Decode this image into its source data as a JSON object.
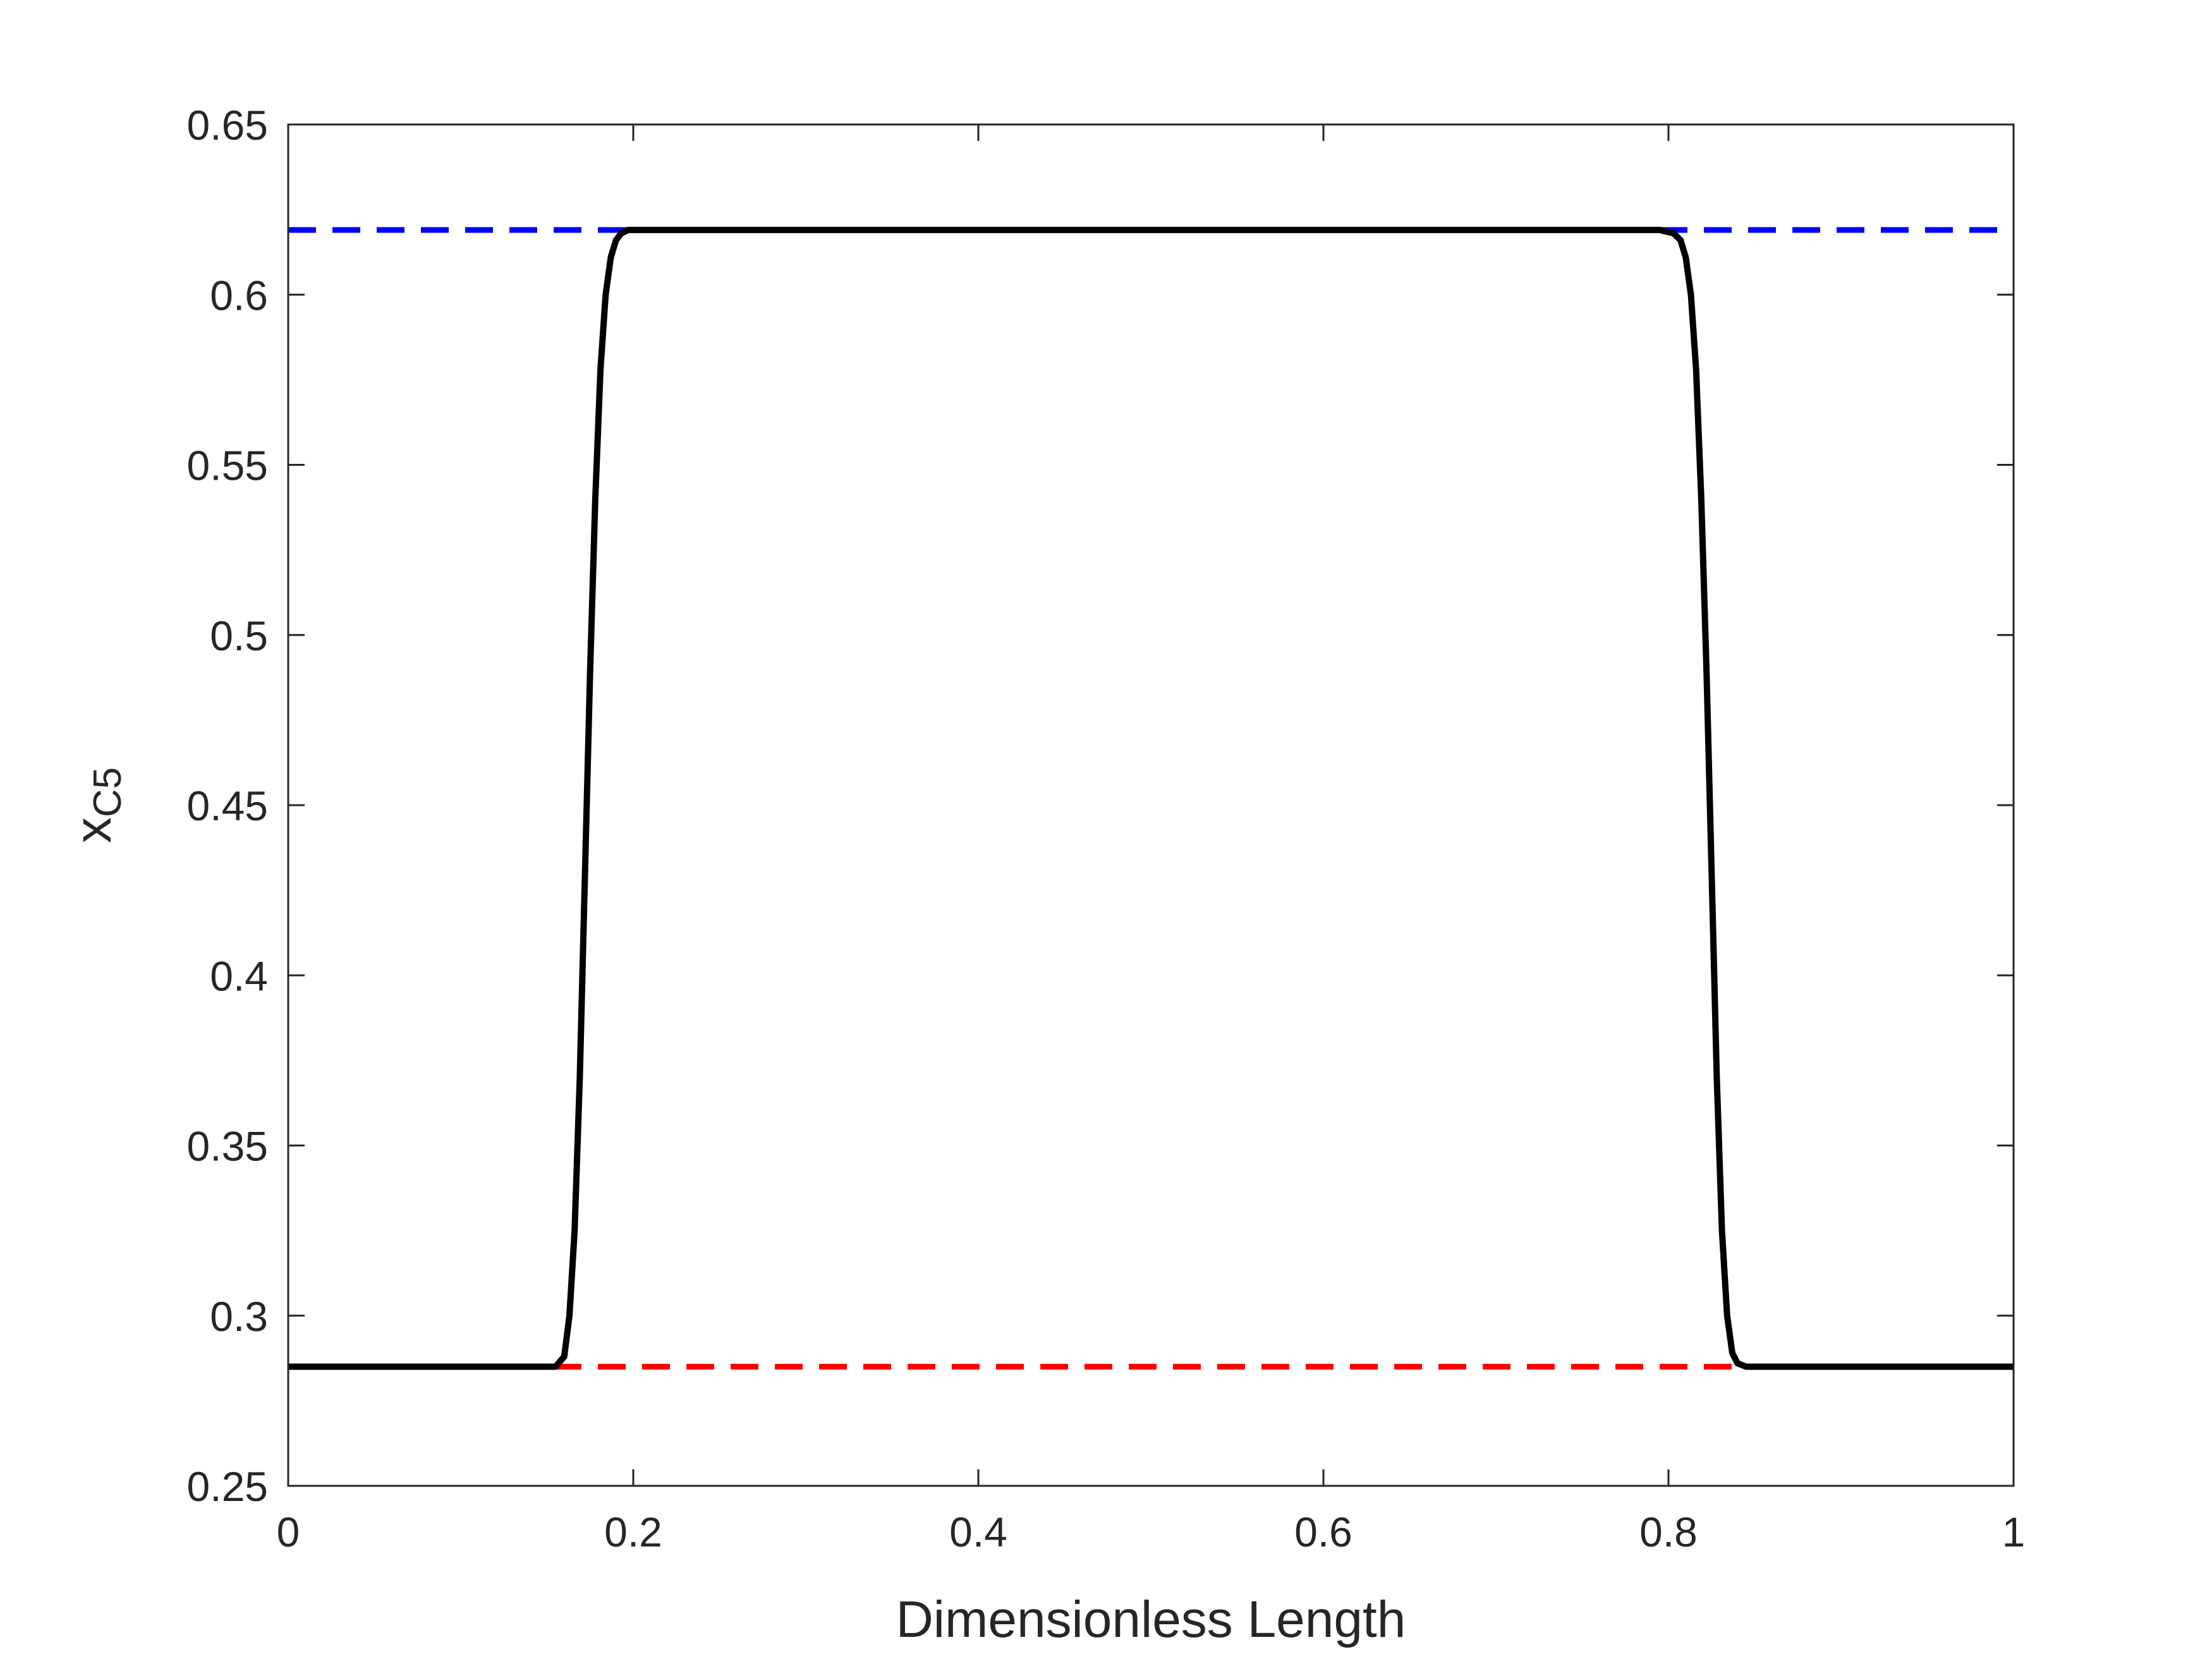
{
  "chart_data": {
    "type": "line",
    "xlabel": "Dimensionless Length",
    "ylabel_main": "x",
    "ylabel_sub": "C5",
    "xlim": [
      0,
      1
    ],
    "ylim": [
      0.25,
      0.65
    ],
    "grid": false,
    "xticks": [
      {
        "v": 0,
        "label": "0"
      },
      {
        "v": 0.2,
        "label": "0.2"
      },
      {
        "v": 0.4,
        "label": "0.4"
      },
      {
        "v": 0.6,
        "label": "0.6"
      },
      {
        "v": 0.8,
        "label": "0.8"
      },
      {
        "v": 1,
        "label": "1"
      }
    ],
    "yticks": [
      {
        "v": 0.25,
        "label": "0.25"
      },
      {
        "v": 0.3,
        "label": "0.3"
      },
      {
        "v": 0.35,
        "label": "0.35"
      },
      {
        "v": 0.4,
        "label": "0.4"
      },
      {
        "v": 0.45,
        "label": "0.45"
      },
      {
        "v": 0.5,
        "label": "0.5"
      },
      {
        "v": 0.55,
        "label": "0.55"
      },
      {
        "v": 0.6,
        "label": "0.6"
      },
      {
        "v": 0.65,
        "label": "0.65"
      }
    ],
    "series": [
      {
        "style": "dashed",
        "color": "#ff0000",
        "x": [
          0,
          1
        ],
        "y": [
          0.285,
          0.285
        ]
      },
      {
        "style": "dashed",
        "color": "#0000ff",
        "x": [
          0,
          1
        ],
        "y": [
          0.619,
          0.619
        ]
      },
      {
        "style": "solid",
        "color": "#000000",
        "x": [
          0,
          0.155,
          0.16,
          0.163,
          0.166,
          0.169,
          0.172,
          0.175,
          0.178,
          0.181,
          0.184,
          0.187,
          0.19,
          0.193,
          0.197,
          0.205,
          0.795,
          0.803,
          0.807,
          0.81,
          0.813,
          0.816,
          0.819,
          0.822,
          0.825,
          0.828,
          0.831,
          0.834,
          0.837,
          0.84,
          0.845,
          1
        ],
        "y": [
          0.285,
          0.285,
          0.288,
          0.3,
          0.325,
          0.37,
          0.43,
          0.49,
          0.54,
          0.578,
          0.6,
          0.611,
          0.616,
          0.618,
          0.619,
          0.619,
          0.619,
          0.618,
          0.616,
          0.611,
          0.6,
          0.578,
          0.54,
          0.49,
          0.43,
          0.37,
          0.325,
          0.3,
          0.289,
          0.286,
          0.285,
          0.285
        ]
      }
    ]
  }
}
